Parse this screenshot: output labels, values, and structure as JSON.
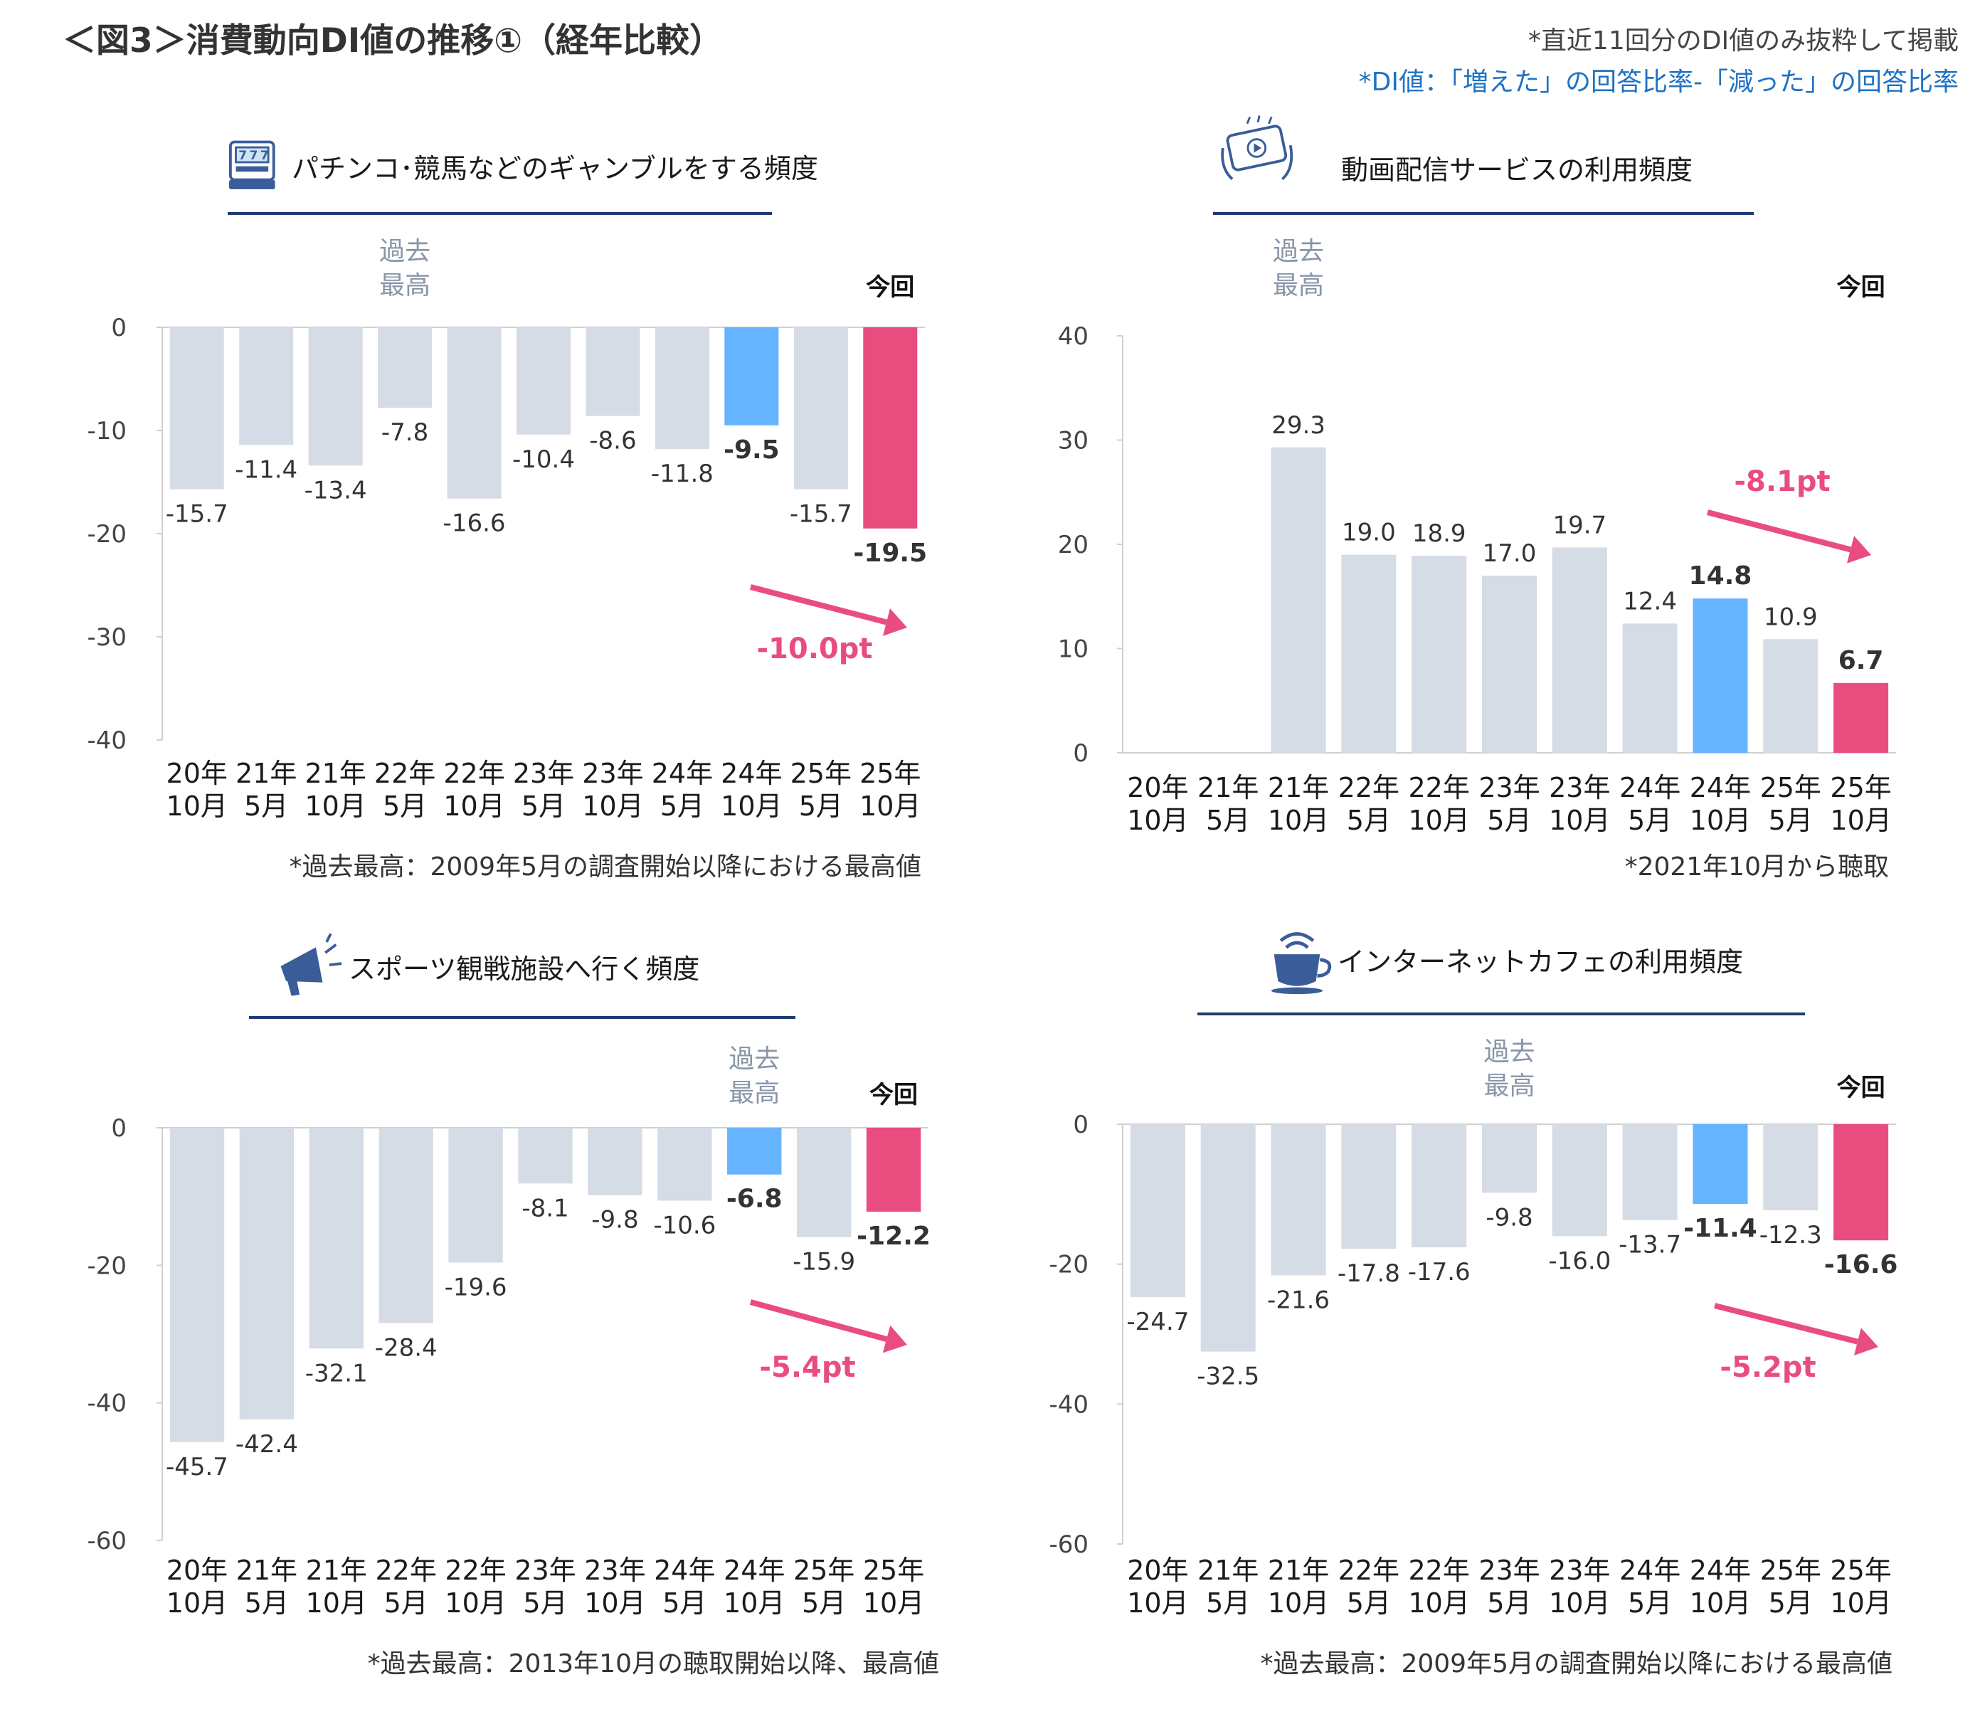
{
  "header": {
    "title": "＜図3＞消費動向DI値の推移①（経年比較）",
    "note1": "*直近11回分のDI値のみ抜粋して掲載",
    "note2": "*DI値：「増えた」の回答比率-「減った」の回答比率"
  },
  "labels": {
    "past_high": [
      "過去",
      "最高"
    ],
    "current": "今回"
  },
  "colors": {
    "bar_default": "#d6dce5",
    "bar_past_high": "#66b3ff",
    "bar_current": "#e94d7f",
    "change_text": "#e94d7f",
    "title_underline": "#1f3b73",
    "icon": "#3a5d99"
  },
  "chart_data": [
    {
      "type": "bar",
      "title": "パチンコ･競馬などのギャンブルをする頻度",
      "icon": "slot-machine-icon",
      "categories": [
        [
          "20年",
          "10月"
        ],
        [
          "21年",
          "5月"
        ],
        [
          "21年",
          "10月"
        ],
        [
          "22年",
          "5月"
        ],
        [
          "22年",
          "10月"
        ],
        [
          "23年",
          "5月"
        ],
        [
          "23年",
          "10月"
        ],
        [
          "24年",
          "5月"
        ],
        [
          "24年",
          "10月"
        ],
        [
          "25年",
          "5月"
        ],
        [
          "25年",
          "10月"
        ]
      ],
      "values": [
        -15.7,
        -11.4,
        -13.4,
        -7.8,
        -16.6,
        -10.4,
        -8.6,
        -11.8,
        -9.5,
        -15.7,
        -19.5
      ],
      "value_labels": [
        "-15.7",
        "-11.4",
        "-13.4",
        "-7.8",
        "-16.6",
        "-10.4",
        "-8.6",
        "-11.8",
        "-9.5",
        "-15.7",
        "-19.5"
      ],
      "ylim": [
        -40,
        0
      ],
      "yticks": [
        0,
        -10,
        -20,
        -30,
        -40
      ],
      "ytick_labels": [
        "0",
        "-10",
        "-20",
        "-30",
        "-40"
      ],
      "past_high_index": 3,
      "highlight_index": 8,
      "current_index": 10,
      "change": "-10.0pt",
      "footnote": "*過去最高：2009年5月の調査開始以降における最高値"
    },
    {
      "type": "bar",
      "title": "動画配信サービスの利用頻度",
      "icon": "video-streaming-icon",
      "categories": [
        [
          "20年",
          "10月"
        ],
        [
          "21年",
          "5月"
        ],
        [
          "21年",
          "10月"
        ],
        [
          "22年",
          "5月"
        ],
        [
          "22年",
          "10月"
        ],
        [
          "23年",
          "5月"
        ],
        [
          "23年",
          "10月"
        ],
        [
          "24年",
          "5月"
        ],
        [
          "24年",
          "10月"
        ],
        [
          "25年",
          "5月"
        ],
        [
          "25年",
          "10月"
        ]
      ],
      "values": [
        null,
        null,
        29.3,
        19.0,
        18.9,
        17.0,
        19.7,
        12.4,
        14.8,
        10.9,
        6.7
      ],
      "value_labels": [
        "",
        "",
        "29.3",
        "19.0",
        "18.9",
        "17.0",
        "19.7",
        "12.4",
        "14.8",
        "10.9",
        "6.7"
      ],
      "ylim": [
        0,
        40
      ],
      "yticks": [
        40,
        30,
        20,
        10,
        0
      ],
      "ytick_labels": [
        "40",
        "30",
        "20",
        "10",
        "0"
      ],
      "past_high_index": 2,
      "highlight_index": 8,
      "current_index": 10,
      "change": "-8.1pt",
      "footnote": "*2021年10月から聴取"
    },
    {
      "type": "bar",
      "title": "スポーツ観戦施設へ行く頻度",
      "icon": "megaphone-icon",
      "categories": [
        [
          "20年",
          "10月"
        ],
        [
          "21年",
          "5月"
        ],
        [
          "21年",
          "10月"
        ],
        [
          "22年",
          "5月"
        ],
        [
          "22年",
          "10月"
        ],
        [
          "23年",
          "5月"
        ],
        [
          "23年",
          "10月"
        ],
        [
          "24年",
          "5月"
        ],
        [
          "24年",
          "10月"
        ],
        [
          "25年",
          "5月"
        ],
        [
          "25年",
          "10月"
        ]
      ],
      "values": [
        -45.7,
        -42.4,
        -32.1,
        -28.4,
        -19.6,
        -8.1,
        -9.8,
        -10.6,
        -6.8,
        -15.9,
        -12.2
      ],
      "value_labels": [
        "-45.7",
        "-42.4",
        "-32.1",
        "-28.4",
        "-19.6",
        "-8.1",
        "-9.8",
        "-10.6",
        "-6.8",
        "-15.9",
        "-12.2"
      ],
      "ylim": [
        -60,
        0
      ],
      "yticks": [
        0,
        -20,
        -40,
        -60
      ],
      "ytick_labels": [
        "0",
        "-20",
        "-40",
        "-60"
      ],
      "past_high_index": 8,
      "highlight_index": 8,
      "current_index": 10,
      "change": "-5.4pt",
      "footnote": "*過去最高：2013年10月の聴取開始以降、最高値"
    },
    {
      "type": "bar",
      "title": "インターネットカフェの利用頻度",
      "icon": "coffee-wifi-icon",
      "categories": [
        [
          "20年",
          "10月"
        ],
        [
          "21年",
          "5月"
        ],
        [
          "21年",
          "10月"
        ],
        [
          "22年",
          "5月"
        ],
        [
          "22年",
          "10月"
        ],
        [
          "23年",
          "5月"
        ],
        [
          "23年",
          "10月"
        ],
        [
          "24年",
          "5月"
        ],
        [
          "24年",
          "10月"
        ],
        [
          "25年",
          "5月"
        ],
        [
          "25年",
          "10月"
        ]
      ],
      "values": [
        -24.7,
        -32.5,
        -21.6,
        -17.8,
        -17.6,
        -9.8,
        -16.0,
        -13.7,
        -11.4,
        -12.3,
        -16.6
      ],
      "value_labels": [
        "-24.7",
        "-32.5",
        "-21.6",
        "-17.8",
        "-17.6",
        "-9.8",
        "-16.0",
        "-13.7",
        "-11.4",
        "-12.3",
        "-16.6"
      ],
      "ylim": [
        -60,
        0
      ],
      "yticks": [
        0,
        -20,
        -40,
        -60
      ],
      "ytick_labels": [
        "0",
        "-20",
        "-40",
        "-60"
      ],
      "past_high_index": 5,
      "highlight_index": 8,
      "current_index": 10,
      "change": "-5.2pt",
      "footnote": "*過去最高：2009年5月の調査開始以降における最高値"
    }
  ]
}
